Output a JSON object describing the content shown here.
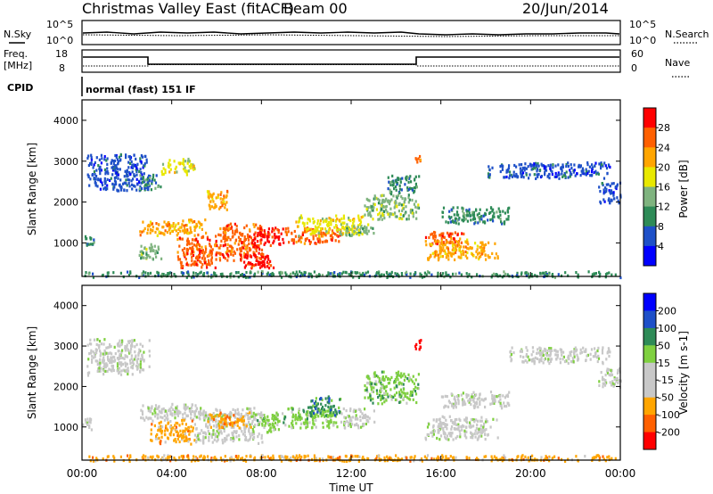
{
  "header": {
    "title": "Christmas Valley East (fitACF)",
    "beam": "Beam 00",
    "date": "20/Jun/2014"
  },
  "panels": {
    "noise": {
      "left_label": "N.Sky",
      "right_label": "N.Search",
      "left_ticks": [
        "10^5",
        "10^0"
      ],
      "right_ticks": [
        "10^5",
        "10^0"
      ]
    },
    "freq": {
      "left_label_1": "Freq.",
      "left_label_2": "[MHz]",
      "right_label": "Nave",
      "left_ticks": [
        "18",
        "8"
      ],
      "right_ticks": [
        "60",
        "0"
      ]
    },
    "cpid": {
      "label": "CPID",
      "text": "normal (fast) 151 IF"
    }
  },
  "colors": {
    "power": [
      "#0000ff",
      "#1e50c8",
      "#2e8b57",
      "#7fb37f",
      "#e8e800",
      "#ffa500",
      "#ff6000",
      "#ff0000"
    ],
    "velocity": [
      "#ff0000",
      "#ff6000",
      "#ffa500",
      "#c8c8c8",
      "#c8c8c8",
      "#7fd040",
      "#2e8b57",
      "#1e50c8",
      "#0000ff"
    ],
    "frame": "#000000"
  },
  "chart_data": [
    {
      "type": "heatmap",
      "name": "power",
      "ylabel": "Slant Range [km]",
      "colorbar_label": "Power [dB]",
      "colorbar_ticks": [
        "28",
        "24",
        "20",
        "16",
        "12",
        "8",
        "4"
      ],
      "y_ticks": [
        "4000",
        "3000",
        "2000",
        "1000"
      ],
      "ylim": [
        180,
        4500
      ],
      "x_ticks": [
        "00:00",
        "04:00",
        "08:00",
        "12:00",
        "16:00",
        "20:00",
        "00:00"
      ],
      "xlim_hours": [
        0,
        24
      ],
      "blobs": [
        {
          "t0": 0.0,
          "t1": 0.5,
          "r0": 950,
          "r1": 1250,
          "level": 2
        },
        {
          "t0": 0.2,
          "t1": 3.0,
          "r0": 2300,
          "r1": 3200,
          "level": 1
        },
        {
          "t0": 2.5,
          "t1": 3.5,
          "r0": 2300,
          "r1": 2700,
          "level": 2
        },
        {
          "t0": 2.5,
          "t1": 5.5,
          "r0": 1200,
          "r1": 1600,
          "level": 5
        },
        {
          "t0": 2.5,
          "t1": 3.5,
          "r0": 600,
          "r1": 1000,
          "level": 3
        },
        {
          "t0": 3.5,
          "t1": 5.0,
          "r0": 2700,
          "r1": 3100,
          "level": 4
        },
        {
          "t0": 4.2,
          "t1": 6.0,
          "r0": 400,
          "r1": 1200,
          "level": 6
        },
        {
          "t0": 5.5,
          "t1": 6.5,
          "r0": 1800,
          "r1": 2300,
          "level": 5
        },
        {
          "t0": 6.0,
          "t1": 8.0,
          "r0": 600,
          "r1": 1500,
          "level": 6
        },
        {
          "t0": 7.0,
          "t1": 8.5,
          "r0": 400,
          "r1": 800,
          "level": 7
        },
        {
          "t0": 7.5,
          "t1": 9.0,
          "r0": 900,
          "r1": 1400,
          "level": 7
        },
        {
          "t0": 9.0,
          "t1": 11.5,
          "r0": 1000,
          "r1": 1400,
          "level": 6
        },
        {
          "t0": 9.5,
          "t1": 12.5,
          "r0": 1200,
          "r1": 1700,
          "level": 4
        },
        {
          "t0": 11.5,
          "t1": 13.0,
          "r0": 1200,
          "r1": 1500,
          "level": 3
        },
        {
          "t0": 12.5,
          "t1": 15.0,
          "r0": 1600,
          "r1": 2200,
          "level": 3
        },
        {
          "t0": 13.5,
          "t1": 15.0,
          "r0": 2200,
          "r1": 2700,
          "level": 2
        },
        {
          "t0": 14.8,
          "t1": 15.1,
          "r0": 2950,
          "r1": 3200,
          "level": 6
        },
        {
          "t0": 15.2,
          "t1": 17.0,
          "r0": 1000,
          "r1": 1300,
          "level": 6
        },
        {
          "t0": 15.3,
          "t1": 18.5,
          "r0": 600,
          "r1": 1150,
          "level": 5
        },
        {
          "t0": 16.0,
          "t1": 19.0,
          "r0": 1500,
          "r1": 1900,
          "level": 2
        },
        {
          "t0": 18.0,
          "t1": 23.5,
          "r0": 2600,
          "r1": 3000,
          "level": 1
        },
        {
          "t0": 23.0,
          "t1": 24.0,
          "r0": 2000,
          "r1": 2500,
          "level": 1
        },
        {
          "t0": 0.0,
          "t1": 24.0,
          "r0": 180,
          "r1": 330,
          "level": 2
        }
      ]
    },
    {
      "type": "heatmap",
      "name": "velocity",
      "ylabel": "Slant Range [km]",
      "colorbar_label": "Velocity [m s-1]",
      "colorbar_ticks": [
        "200",
        "100",
        "50",
        "15",
        "-15",
        "-50",
        "-100",
        "-200"
      ],
      "y_ticks": [
        "4000",
        "3000",
        "2000",
        "1000"
      ],
      "ylim": [
        180,
        4500
      ],
      "x_ticks": [
        "00:00",
        "04:00",
        "08:00",
        "12:00",
        "16:00",
        "20:00",
        "00:00"
      ],
      "xlabel": "Time UT",
      "xlim_hours": [
        0,
        24
      ],
      "blobs": [
        {
          "t0": 0.0,
          "t1": 0.5,
          "r0": 950,
          "r1": 1250,
          "level": 4
        },
        {
          "t0": 0.2,
          "t1": 3.0,
          "r0": 2300,
          "r1": 3200,
          "level": 4
        },
        {
          "t0": 2.5,
          "t1": 5.5,
          "r0": 1200,
          "r1": 1600,
          "level": 4
        },
        {
          "t0": 3.0,
          "t1": 5.0,
          "r0": 600,
          "r1": 1200,
          "level": 2
        },
        {
          "t0": 5.0,
          "t1": 8.0,
          "r0": 600,
          "r1": 1500,
          "level": 4
        },
        {
          "t0": 5.5,
          "t1": 7.5,
          "r0": 1000,
          "r1": 1400,
          "level": 2
        },
        {
          "t0": 7.5,
          "t1": 9.0,
          "r0": 900,
          "r1": 1400,
          "level": 5
        },
        {
          "t0": 9.0,
          "t1": 11.5,
          "r0": 1000,
          "r1": 1500,
          "level": 5
        },
        {
          "t0": 10.0,
          "t1": 11.5,
          "r0": 1300,
          "r1": 1800,
          "level": 6
        },
        {
          "t0": 11.5,
          "t1": 13.0,
          "r0": 1000,
          "r1": 1500,
          "level": 4
        },
        {
          "t0": 12.5,
          "t1": 15.0,
          "r0": 1600,
          "r1": 2400,
          "level": 5
        },
        {
          "t0": 14.8,
          "t1": 15.1,
          "r0": 2950,
          "r1": 3200,
          "level": 0
        },
        {
          "t0": 15.2,
          "t1": 18.5,
          "r0": 700,
          "r1": 1300,
          "level": 4
        },
        {
          "t0": 16.0,
          "t1": 19.0,
          "r0": 1500,
          "r1": 1900,
          "level": 4
        },
        {
          "t0": 19.0,
          "t1": 23.5,
          "r0": 2600,
          "r1": 3000,
          "level": 4
        },
        {
          "t0": 23.0,
          "t1": 24.0,
          "r0": 2000,
          "r1": 2500,
          "level": 4
        },
        {
          "t0": 0.0,
          "t1": 24.0,
          "r0": 180,
          "r1": 330,
          "level": 2
        }
      ]
    }
  ]
}
